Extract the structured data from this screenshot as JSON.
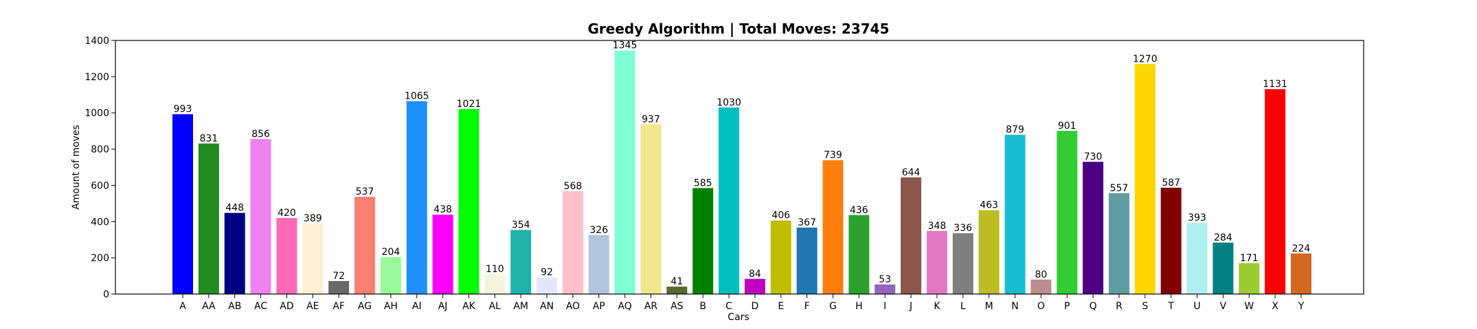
{
  "chart_data": {
    "type": "bar",
    "title": "Greedy Algorithm | Total Moves: 23745",
    "xlabel": "Cars",
    "ylabel": "Amount of moves",
    "ylim": [
      0,
      1400
    ],
    "yticks": [
      0,
      200,
      400,
      600,
      800,
      1000,
      1200,
      1400
    ],
    "grid": false,
    "legend": "none",
    "categories": [
      "A",
      "AA",
      "AB",
      "AC",
      "AD",
      "AE",
      "AF",
      "AG",
      "AH",
      "AI",
      "AJ",
      "AK",
      "AL",
      "AM",
      "AN",
      "AO",
      "AP",
      "AQ",
      "AR",
      "AS",
      "B",
      "C",
      "D",
      "E",
      "F",
      "G",
      "H",
      "I",
      "J",
      "K",
      "L",
      "M",
      "N",
      "O",
      "P",
      "Q",
      "R",
      "S",
      "T",
      "U",
      "V",
      "W",
      "X",
      "Y"
    ],
    "values": [
      993,
      831,
      448,
      856,
      420,
      389,
      72,
      537,
      204,
      1065,
      438,
      1021,
      110,
      354,
      92,
      568,
      326,
      1345,
      937,
      41,
      585,
      1030,
      84,
      406,
      367,
      739,
      436,
      53,
      644,
      348,
      336,
      463,
      879,
      80,
      901,
      730,
      557,
      1270,
      587,
      393,
      284,
      171,
      1131,
      224
    ],
    "colors": [
      "#0000ff",
      "#228b22",
      "#000080",
      "#ee82ee",
      "#ff69b4",
      "#ffefd5",
      "#696969",
      "#fa8072",
      "#98fb98",
      "#1e90ff",
      "#ff00ff",
      "#00ff00",
      "#f5f5dc",
      "#20b2aa",
      "#e6e6fa",
      "#ffc0cb",
      "#b0c4de",
      "#7fffd4",
      "#f0e68c",
      "#556b2f",
      "#008000",
      "#00bfbf",
      "#bf00bf",
      "#bfbf00",
      "#1f77b4",
      "#ff7f0e",
      "#2ca02c",
      "#9467bd",
      "#8c564b",
      "#e377c2",
      "#7f7f7f",
      "#bcbd22",
      "#17becf",
      "#bc8f8f",
      "#32cd32",
      "#4b0082",
      "#5f9ea0",
      "#ffd700",
      "#800000",
      "#afeeee",
      "#008080",
      "#9acd32",
      "#ff0000",
      "#d2691e"
    ]
  }
}
